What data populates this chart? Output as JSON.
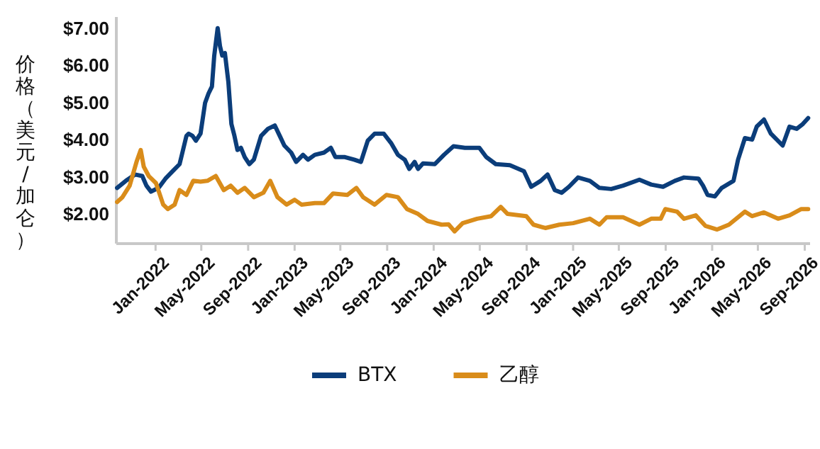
{
  "chart_data": {
    "type": "line",
    "ylabel": "价格（美元/加仑）",
    "legend": "bottom",
    "xlim": [
      "2021-09-20",
      "2026-09-15"
    ],
    "xticks": [
      {
        "value": "2022-01-01",
        "label": "Jan-2022"
      },
      {
        "value": "2022-05-01",
        "label": "May-2022"
      },
      {
        "value": "2022-09-01",
        "label": "Sep-2022"
      },
      {
        "value": "2023-01-01",
        "label": "Jan-2023"
      },
      {
        "value": "2023-05-01",
        "label": "May-2023"
      },
      {
        "value": "2023-09-01",
        "label": "Sep-2023"
      },
      {
        "value": "2024-01-01",
        "label": "Jan-2024"
      },
      {
        "value": "2024-05-01",
        "label": "May-2024"
      },
      {
        "value": "2024-09-01",
        "label": "Sep-2024"
      },
      {
        "value": "2025-01-01",
        "label": "Jan-2025"
      },
      {
        "value": "2025-05-01",
        "label": "May-2025"
      },
      {
        "value": "2025-09-01",
        "label": "Sep-2025"
      },
      {
        "value": "2026-01-01",
        "label": "Jan-2026"
      },
      {
        "value": "2026-05-01",
        "label": "May-2026"
      },
      {
        "value": "2026-09-01",
        "label": "Sep-2026"
      }
    ],
    "ylim": [
      1.2,
      7.3
    ],
    "yticks": [
      {
        "value": 2,
        "label": "$2.00"
      },
      {
        "value": 3,
        "label": "$3.00"
      },
      {
        "value": 4,
        "label": "$4.00"
      },
      {
        "value": 5,
        "label": "$5.00"
      },
      {
        "value": 6,
        "label": "$6.00"
      },
      {
        "value": 7,
        "label": "$7.00"
      }
    ],
    "series": [
      {
        "name": "BTX",
        "color": "#0b3d7a",
        "x": [
          "2021-09-22",
          "2021-10-15",
          "2021-11-08",
          "2021-11-27",
          "2021-12-08",
          "2021-12-20",
          "2022-01-09",
          "2022-01-27",
          "2022-02-15",
          "2022-03-05",
          "2022-03-11",
          "2022-03-23",
          "2022-03-29",
          "2022-04-08",
          "2022-04-17",
          "2022-04-29",
          "2022-05-11",
          "2022-05-20",
          "2022-05-29",
          "2022-06-04",
          "2022-06-13",
          "2022-06-19",
          "2022-06-25",
          "2022-07-02",
          "2022-07-11",
          "2022-07-19",
          "2022-07-27",
          "2022-08-04",
          "2022-08-13",
          "2022-08-23",
          "2022-09-04",
          "2022-09-16",
          "2022-10-05",
          "2022-10-23",
          "2022-11-10",
          "2022-11-23",
          "2022-12-05",
          "2022-12-23",
          "2023-01-05",
          "2023-01-23",
          "2023-02-05",
          "2023-02-23",
          "2023-03-19",
          "2023-04-06",
          "2023-04-18",
          "2023-05-13",
          "2023-06-06",
          "2023-06-24",
          "2023-07-12",
          "2023-07-30",
          "2023-08-23",
          "2023-09-11",
          "2023-09-29",
          "2023-10-17",
          "2023-10-29",
          "2023-11-12",
          "2023-11-21",
          "2023-12-04",
          "2024-01-04",
          "2024-01-28",
          "2024-02-22",
          "2024-03-23",
          "2024-04-30",
          "2024-05-18",
          "2024-06-12",
          "2024-07-19",
          "2024-08-25",
          "2024-09-13",
          "2024-10-08",
          "2024-10-26",
          "2024-11-14",
          "2024-12-02",
          "2024-12-21",
          "2025-01-14",
          "2025-02-14",
          "2025-03-11",
          "2025-04-11",
          "2025-05-12",
          "2025-06-24",
          "2025-07-25",
          "2025-08-25",
          "2025-09-25",
          "2025-10-19",
          "2025-11-26",
          "2025-12-08",
          "2025-12-20",
          "2026-01-08",
          "2026-01-26",
          "2026-02-26",
          "2026-03-10",
          "2026-03-28",
          "2026-04-16",
          "2026-04-28",
          "2026-05-17",
          "2026-06-04",
          "2026-07-05",
          "2026-07-23",
          "2026-08-11",
          "2026-08-27",
          "2026-09-10"
        ],
        "values": [
          2.7,
          2.89,
          3.06,
          3.02,
          2.76,
          2.6,
          2.7,
          2.95,
          3.15,
          3.34,
          3.59,
          4.1,
          4.16,
          4.1,
          3.97,
          4.16,
          4.99,
          5.24,
          5.43,
          6.26,
          7.0,
          6.52,
          6.26,
          6.33,
          5.56,
          4.42,
          4.1,
          3.72,
          3.78,
          3.53,
          3.34,
          3.46,
          4.1,
          4.29,
          4.38,
          4.1,
          3.84,
          3.65,
          3.4,
          3.59,
          3.46,
          3.59,
          3.65,
          3.78,
          3.53,
          3.53,
          3.46,
          3.4,
          3.97,
          4.16,
          4.16,
          3.91,
          3.59,
          3.46,
          3.21,
          3.4,
          3.21,
          3.36,
          3.34,
          3.59,
          3.82,
          3.78,
          3.78,
          3.53,
          3.34,
          3.31,
          3.15,
          2.73,
          2.89,
          3.06,
          2.64,
          2.57,
          2.73,
          2.98,
          2.89,
          2.7,
          2.67,
          2.76,
          2.92,
          2.79,
          2.73,
          2.89,
          2.98,
          2.95,
          2.76,
          2.51,
          2.47,
          2.7,
          2.89,
          3.46,
          4.04,
          4.0,
          4.35,
          4.54,
          4.16,
          3.84,
          4.35,
          4.29,
          4.42,
          4.58
        ]
      },
      {
        "name": "乙醇",
        "color": "#d98c1a",
        "x": [
          "2021-09-22",
          "2021-10-06",
          "2021-10-25",
          "2021-11-12",
          "2021-11-23",
          "2021-12-01",
          "2021-12-14",
          "2022-01-02",
          "2022-01-21",
          "2022-02-02",
          "2022-02-20",
          "2022-03-05",
          "2022-03-23",
          "2022-04-10",
          "2022-04-29",
          "2022-05-17",
          "2022-06-08",
          "2022-06-29",
          "2022-07-17",
          "2022-08-04",
          "2022-08-23",
          "2022-09-16",
          "2022-10-11",
          "2022-10-29",
          "2022-11-17",
          "2022-12-11",
          "2023-01-01",
          "2023-01-19",
          "2023-02-23",
          "2023-03-19",
          "2023-04-12",
          "2023-05-19",
          "2023-06-12",
          "2023-06-30",
          "2023-07-30",
          "2023-08-30",
          "2023-09-29",
          "2023-10-23",
          "2023-11-21",
          "2023-12-16",
          "2024-01-22",
          "2024-02-09",
          "2024-02-25",
          "2024-03-17",
          "2024-04-24",
          "2024-05-31",
          "2024-06-25",
          "2024-07-13",
          "2024-08-31",
          "2024-09-19",
          "2024-10-20",
          "2024-11-26",
          "2025-01-01",
          "2025-02-14",
          "2025-03-11",
          "2025-03-30",
          "2025-05-12",
          "2025-06-24",
          "2025-07-25",
          "2025-08-19",
          "2025-08-31",
          "2025-10-01",
          "2025-10-19",
          "2025-11-19",
          "2025-12-14",
          "2026-01-14",
          "2026-02-14",
          "2026-03-28",
          "2026-04-16",
          "2026-05-17",
          "2026-06-23",
          "2026-07-23",
          "2026-08-23",
          "2026-09-10"
        ],
        "values": [
          2.32,
          2.45,
          2.76,
          3.4,
          3.72,
          3.27,
          3.02,
          2.83,
          2.25,
          2.13,
          2.25,
          2.64,
          2.51,
          2.89,
          2.87,
          2.89,
          3.02,
          2.64,
          2.76,
          2.57,
          2.7,
          2.45,
          2.57,
          2.89,
          2.45,
          2.25,
          2.38,
          2.25,
          2.29,
          2.29,
          2.55,
          2.51,
          2.7,
          2.45,
          2.25,
          2.51,
          2.45,
          2.13,
          2.0,
          1.81,
          1.71,
          1.72,
          1.53,
          1.75,
          1.87,
          1.94,
          2.19,
          2.0,
          1.94,
          1.71,
          1.62,
          1.71,
          1.75,
          1.87,
          1.71,
          1.91,
          1.91,
          1.71,
          1.87,
          1.87,
          2.13,
          2.06,
          1.87,
          1.96,
          1.68,
          1.58,
          1.71,
          2.06,
          1.94,
          2.04,
          1.87,
          1.96,
          2.13,
          2.13
        ]
      }
    ]
  }
}
